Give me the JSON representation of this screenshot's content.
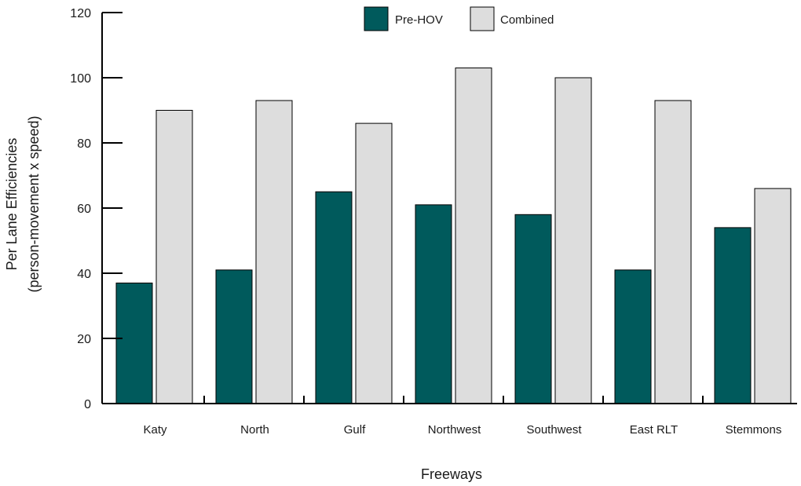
{
  "chart_data": {
    "type": "bar",
    "title": "",
    "xlabel": "Freeways",
    "ylabel_line1": "Per Lane Efficiencies",
    "ylabel_line2": "(person-movement x speed)",
    "ylim": [
      0,
      120
    ],
    "yticks": [
      "0",
      "20",
      "40",
      "60",
      "80",
      "100",
      "120"
    ],
    "categories": [
      "Katy",
      "North",
      "Gulf",
      "Northwest",
      "Southwest",
      "East RLT",
      "Stemmons"
    ],
    "series": [
      {
        "name": "Pre-HOV",
        "color": "#005a5c",
        "values": [
          37,
          41,
          65,
          61,
          58,
          41,
          54
        ]
      },
      {
        "name": "Combined",
        "color": "#dddddd",
        "values": [
          90,
          93,
          86,
          103,
          100,
          93,
          66
        ]
      }
    ],
    "legend_position": "top-center",
    "grid": false
  }
}
